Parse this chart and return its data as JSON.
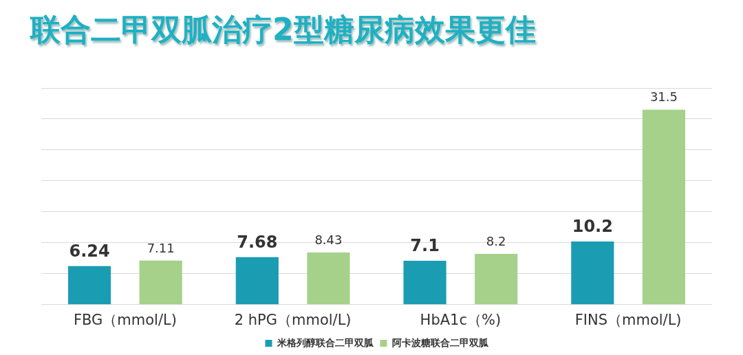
{
  "chart_data": {
    "type": "bar",
    "title": "联合二甲双胍治疗2型糖尿病效果更佳",
    "categories": [
      "FBG（mmol/L)",
      "2 hPG（mmol/L)",
      "HbA1c（%)",
      "FINS（mmol/L)"
    ],
    "series": [
      {
        "name": "米格列醇联合二甲双胍",
        "color": "#1a9db3",
        "values": [
          6.24,
          7.68,
          7.1,
          10.2
        ]
      },
      {
        "name": "阿卡波糖联合二甲双胍",
        "color": "#a5d18b",
        "values": [
          7.11,
          8.43,
          8.2,
          31.5
        ]
      }
    ],
    "ylim": [
      0,
      35
    ],
    "yticks": [
      {
        "value": 0,
        "label": null
      },
      {
        "value": 5,
        "label": null
      },
      {
        "value": 10,
        "label": null
      },
      {
        "value": 15,
        "label": null
      },
      {
        "value": 20,
        "label": null
      },
      {
        "value": 25,
        "label": null
      },
      {
        "value": 30,
        "label": null
      },
      {
        "value": 35,
        "label": null
      }
    ],
    "tick_labels": "x",
    "grid": "y",
    "legend": "bottom",
    "data_labels": true
  }
}
